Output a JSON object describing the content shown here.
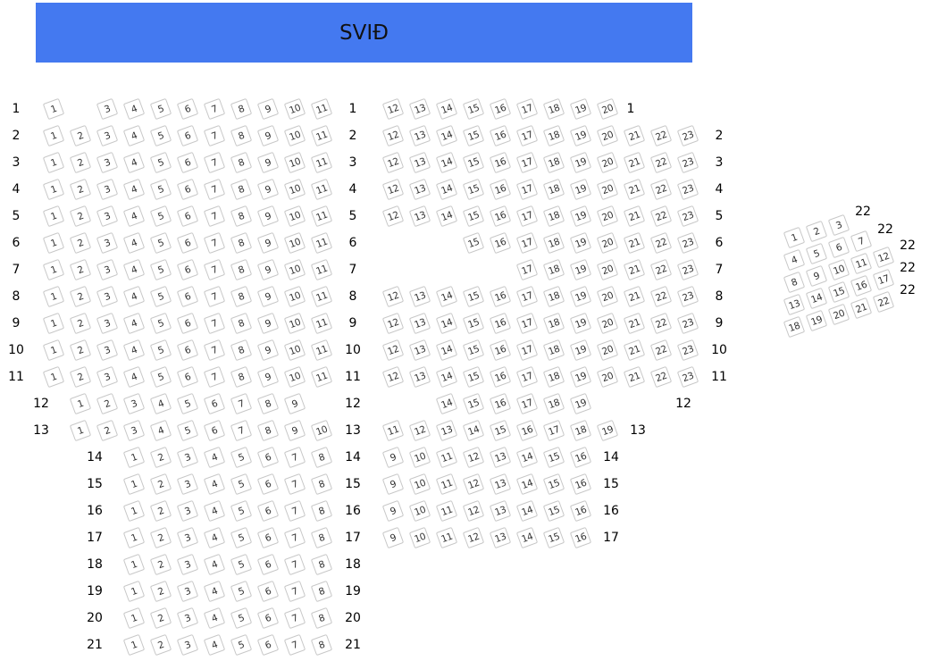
{
  "stage": {
    "label": "SVIÐ"
  },
  "seat_colors": {
    "border": "#c8c8c8",
    "text": "#333333",
    "stage": "#4479f0"
  },
  "left": {
    "rows": [
      {
        "row": "1",
        "seats": [
          1,
          3,
          4,
          5,
          6,
          7,
          8,
          9,
          10,
          11
        ]
      },
      {
        "row": "2",
        "seats": [
          1,
          2,
          3,
          4,
          5,
          6,
          7,
          8,
          9,
          10,
          11
        ]
      },
      {
        "row": "3",
        "seats": [
          1,
          2,
          3,
          4,
          5,
          6,
          7,
          8,
          9,
          10,
          11
        ]
      },
      {
        "row": "4",
        "seats": [
          1,
          2,
          3,
          4,
          5,
          6,
          7,
          8,
          9,
          10,
          11
        ]
      },
      {
        "row": "5",
        "seats": [
          1,
          2,
          3,
          4,
          5,
          6,
          7,
          8,
          9,
          10,
          11
        ]
      },
      {
        "row": "6",
        "seats": [
          1,
          2,
          3,
          4,
          5,
          6,
          7,
          8,
          9,
          10,
          11
        ]
      },
      {
        "row": "7",
        "seats": [
          1,
          2,
          3,
          4,
          5,
          6,
          7,
          8,
          9,
          10,
          11
        ]
      },
      {
        "row": "8",
        "seats": [
          1,
          2,
          3,
          4,
          5,
          6,
          7,
          8,
          9,
          10,
          11
        ]
      },
      {
        "row": "9",
        "seats": [
          1,
          2,
          3,
          4,
          5,
          6,
          7,
          8,
          9,
          10,
          11
        ]
      },
      {
        "row": "10",
        "seats": [
          1,
          2,
          3,
          4,
          5,
          6,
          7,
          8,
          9,
          10,
          11
        ]
      },
      {
        "row": "11",
        "seats": [
          1,
          2,
          3,
          4,
          5,
          6,
          7,
          8,
          9,
          10,
          11
        ]
      },
      {
        "row": "12",
        "seats": [
          1,
          2,
          3,
          4,
          5,
          6,
          7,
          8,
          9
        ]
      },
      {
        "row": "13",
        "seats": [
          1,
          2,
          3,
          4,
          5,
          6,
          7,
          8,
          9,
          10
        ]
      },
      {
        "row": "14",
        "seats": [
          1,
          2,
          3,
          4,
          5,
          6,
          7,
          8
        ]
      },
      {
        "row": "15",
        "seats": [
          1,
          2,
          3,
          4,
          5,
          6,
          7,
          8
        ]
      },
      {
        "row": "16",
        "seats": [
          1,
          2,
          3,
          4,
          5,
          6,
          7,
          8
        ]
      },
      {
        "row": "17",
        "seats": [
          1,
          2,
          3,
          4,
          5,
          6,
          7,
          8
        ]
      },
      {
        "row": "18",
        "seats": [
          1,
          2,
          3,
          4,
          5,
          6,
          7,
          8
        ]
      },
      {
        "row": "19",
        "seats": [
          1,
          2,
          3,
          4,
          5,
          6,
          7,
          8
        ]
      },
      {
        "row": "20",
        "seats": [
          1,
          2,
          3,
          4,
          5,
          6,
          7,
          8
        ]
      },
      {
        "row": "21",
        "seats": [
          1,
          2,
          3,
          4,
          5,
          6,
          7,
          8
        ]
      }
    ]
  },
  "middle": {
    "rows": [
      {
        "row": "1",
        "seats": [
          12,
          13,
          14,
          15,
          16,
          17,
          18,
          19,
          20
        ]
      },
      {
        "row": "2",
        "seats": [
          12,
          13,
          14,
          15,
          16,
          17,
          18,
          19,
          20,
          21,
          22,
          23
        ]
      },
      {
        "row": "3",
        "seats": [
          12,
          13,
          14,
          15,
          16,
          17,
          18,
          19,
          20,
          21,
          22,
          23
        ]
      },
      {
        "row": "4",
        "seats": [
          12,
          13,
          14,
          15,
          16,
          17,
          18,
          19,
          20,
          21,
          22,
          23
        ]
      },
      {
        "row": "5",
        "seats": [
          12,
          13,
          14,
          15,
          16,
          17,
          18,
          19,
          20,
          21,
          22,
          23
        ]
      },
      {
        "row": "6",
        "seats": [
          15,
          16,
          17,
          18,
          19,
          20,
          21,
          22,
          23
        ]
      },
      {
        "row": "7",
        "seats": [
          17,
          18,
          19,
          20,
          21,
          22,
          23
        ]
      },
      {
        "row": "8",
        "seats": [
          12,
          13,
          14,
          15,
          16,
          17,
          18,
          19,
          20,
          21,
          22,
          23
        ]
      },
      {
        "row": "9",
        "seats": [
          12,
          13,
          14,
          15,
          16,
          17,
          18,
          19,
          20,
          21,
          22,
          23
        ]
      },
      {
        "row": "10",
        "seats": [
          12,
          13,
          14,
          15,
          16,
          17,
          18,
          19,
          20,
          21,
          22,
          23
        ]
      },
      {
        "row": "11",
        "seats": [
          12,
          13,
          14,
          15,
          16,
          17,
          18,
          19,
          20,
          21,
          22,
          23
        ]
      },
      {
        "row": "12",
        "seats": [
          14,
          15,
          16,
          17,
          18,
          19
        ]
      },
      {
        "row": "13",
        "seats": [
          11,
          12,
          13,
          14,
          15,
          16,
          17,
          18,
          19
        ]
      },
      {
        "row": "14",
        "seats": [
          9,
          10,
          11,
          12,
          13,
          14,
          15,
          16
        ]
      },
      {
        "row": "15",
        "seats": [
          9,
          10,
          11,
          12,
          13,
          14,
          15,
          16
        ]
      },
      {
        "row": "16",
        "seats": [
          9,
          10,
          11,
          12,
          13,
          14,
          15,
          16
        ]
      },
      {
        "row": "17",
        "seats": [
          9,
          10,
          11,
          12,
          13,
          14,
          15,
          16
        ]
      }
    ]
  },
  "box": {
    "row_labels": [
      "22",
      "22",
      "22",
      "22",
      "22"
    ],
    "rows": [
      [
        1,
        2,
        3
      ],
      [
        4,
        5,
        6,
        7
      ],
      [
        8,
        9,
        10,
        11,
        12
      ],
      [
        13,
        14,
        15,
        16,
        17
      ],
      [
        18,
        19,
        20,
        21,
        22
      ]
    ]
  }
}
